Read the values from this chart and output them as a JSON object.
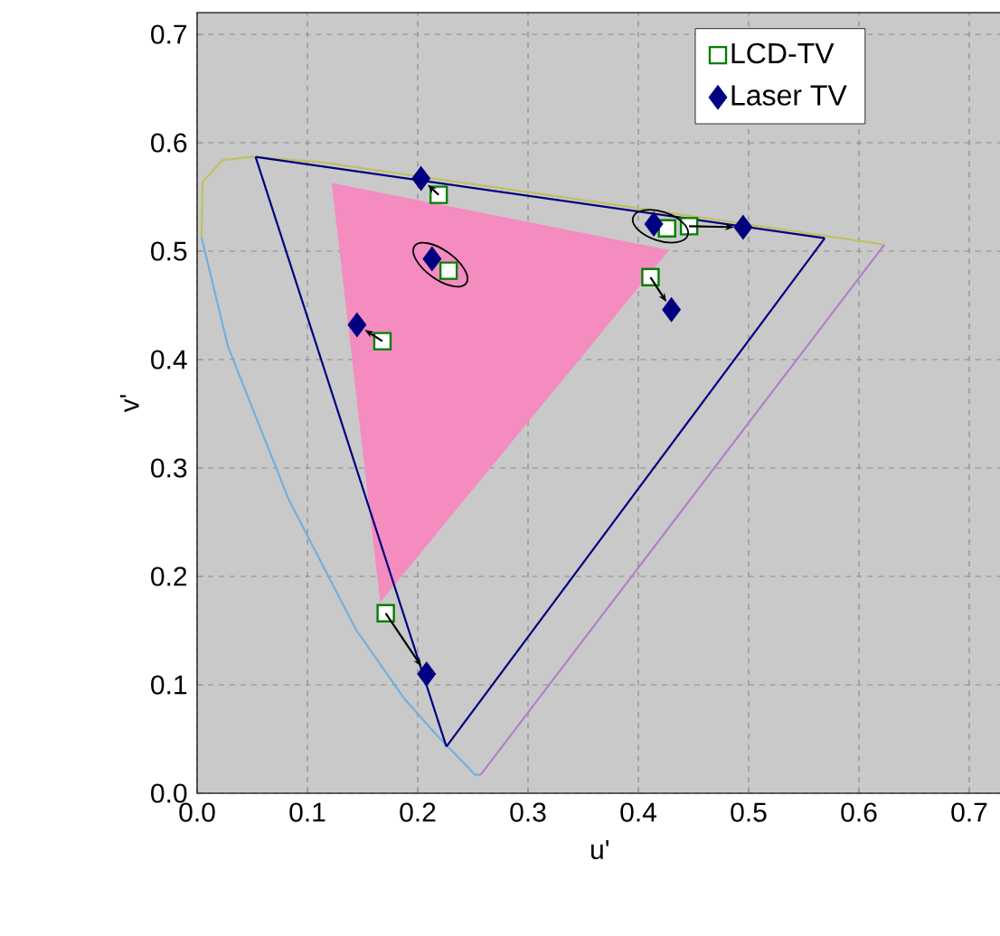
{
  "chart_data": {
    "type": "scatter",
    "xlabel": "u'",
    "ylabel": "v'",
    "xlim": [
      0,
      0.73
    ],
    "ylim": [
      0,
      0.72
    ],
    "xticks": [
      {
        "value": 0,
        "label": "0.0"
      },
      0.1,
      0.2,
      0.3,
      0.4,
      0.5,
      0.6,
      0.7
    ],
    "yticks": [
      {
        "value": 0,
        "label": "0.0"
      },
      0.1,
      0.2,
      0.3,
      0.4,
      0.5,
      0.6,
      0.7
    ],
    "grid": true,
    "legend": "top right",
    "series": [
      {
        "type": "area",
        "color": "#f48cc0",
        "x": [
          0.122,
          0.428,
          0.166
        ],
        "values": [
          0.563,
          0.501,
          0.176
        ]
      },
      {
        "type": "line",
        "color": "#70b0e0",
        "marker": "none",
        "x": [
          0.257,
          0.252,
          0.235,
          0.216,
          0.188,
          0.144,
          0.083,
          0.028,
          0.004
        ],
        "values": [
          0.017,
          0.017,
          0.035,
          0.055,
          0.087,
          0.151,
          0.271,
          0.412,
          0.513
        ]
      },
      {
        "type": "line",
        "color": "#c0c060",
        "marker": "none",
        "x": [
          0.004,
          0.005,
          0.023,
          0.05,
          0.113,
          0.404,
          0.623
        ],
        "values": [
          0.513,
          0.564,
          0.584,
          0.587,
          0.582,
          0.539,
          0.506
        ]
      },
      {
        "type": "line",
        "color": "#b080c8",
        "marker": "none",
        "x": [
          0.623,
          0.257
        ],
        "values": [
          0.506,
          0.017
        ]
      },
      {
        "type": "line",
        "color": "#000080",
        "marker": "none",
        "x": [
          0.053,
          0.569
        ],
        "values": [
          0.587,
          0.512
        ]
      },
      {
        "type": "line",
        "color": "#000080",
        "marker": "none",
        "x": [
          0.569,
          0.226
        ],
        "values": [
          0.512,
          0.043
        ]
      },
      {
        "type": "line",
        "color": "#000080",
        "marker": "none",
        "x": [
          0.226,
          0.053
        ],
        "values": [
          0.043,
          0.587
        ]
      },
      {
        "name": "LCD-TV",
        "color": "#008000",
        "marker": "square",
        "x": [
          0.219,
          0.228,
          0.168,
          0.426,
          0.446,
          0.411,
          0.171
        ],
        "values": [
          0.552,
          0.482,
          0.417,
          0.521,
          0.523,
          0.476,
          0.166
        ]
      },
      {
        "name": "Laser TV",
        "color": "#000080",
        "marker": "diamond",
        "x": [
          0.203,
          0.213,
          0.145,
          0.414,
          0.495,
          0.43,
          0.208
        ],
        "values": [
          0.567,
          0.493,
          0.432,
          0.525,
          0.522,
          0.446,
          0.11
        ]
      }
    ]
  }
}
